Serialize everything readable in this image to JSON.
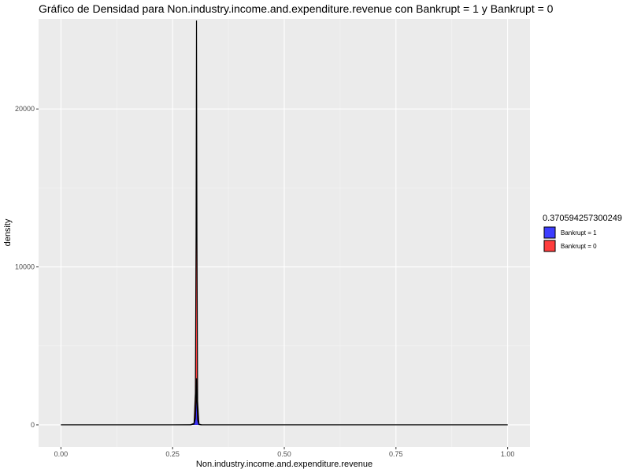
{
  "chart_data": {
    "type": "area",
    "title": "Gráfico de Densidad para Non.industry.income.and.expenditure.revenue con Bankrupt = 1 y Bankrupt = 0",
    "xlabel": "Non.industry.income.and.expenditure.revenue",
    "ylabel": "density",
    "xlim": [
      -0.05,
      1.05
    ],
    "ylim": [
      -1400,
      25700
    ],
    "x_ticks": [
      0,
      0.25,
      0.5,
      0.75,
      1
    ],
    "x_tick_labels": [
      "0.00",
      "0.25",
      "0.50",
      "0.75",
      "1.00"
    ],
    "y_ticks": [
      0,
      10000,
      20000
    ],
    "y_tick_labels": [
      "0",
      "10000",
      "20000"
    ],
    "grid": true,
    "legend_position": "right",
    "legend_title": "0.370594257300249",
    "series": [
      {
        "name": "Bankrupt = 1",
        "color": "#3333ff",
        "x": [
          0,
          0.25,
          0.29,
          0.298,
          0.301,
          0.3025,
          0.3035,
          0.3045,
          0.306,
          0.309,
          0.315,
          1
        ],
        "y": [
          0,
          0,
          2,
          50,
          400,
          1500,
          2950,
          1500,
          300,
          20,
          0,
          0
        ]
      },
      {
        "name": "Bankrupt = 0",
        "color": "#ff3333",
        "x": [
          0,
          0.25,
          0.29,
          0.298,
          0.301,
          0.3025,
          0.3035,
          0.3045,
          0.306,
          0.309,
          0.315,
          1
        ],
        "y": [
          0,
          0,
          5,
          100,
          2000,
          12000,
          25600,
          12000,
          1500,
          50,
          0,
          0
        ]
      }
    ]
  }
}
